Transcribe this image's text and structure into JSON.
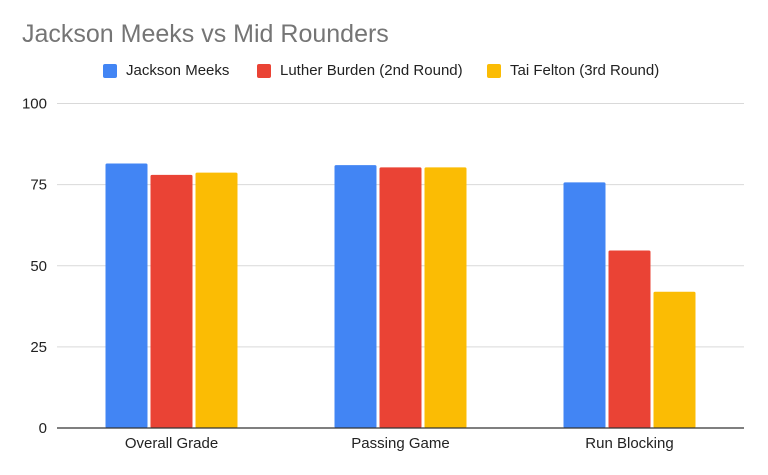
{
  "chart_data": {
    "type": "bar",
    "title": "Jackson Meeks vs Mid Rounders",
    "categories": [
      "Overall Grade",
      "Passing Game",
      "Run Blocking"
    ],
    "series": [
      {
        "name": "Jackson Meeks",
        "color": "#4285F4",
        "values": [
          81.5,
          81,
          75.7
        ]
      },
      {
        "name": "Luther Burden (2nd Round)",
        "color": "#EA4335",
        "values": [
          78,
          80.3,
          54.7
        ]
      },
      {
        "name": "Tai Felton (3rd Round)",
        "color": "#FBBC04",
        "values": [
          78.7,
          80.3,
          42
        ]
      }
    ],
    "ylim": [
      0,
      100
    ],
    "yticks": [
      "0",
      "25",
      "50",
      "75",
      "100"
    ],
    "grid": true,
    "legend_position": "top"
  }
}
